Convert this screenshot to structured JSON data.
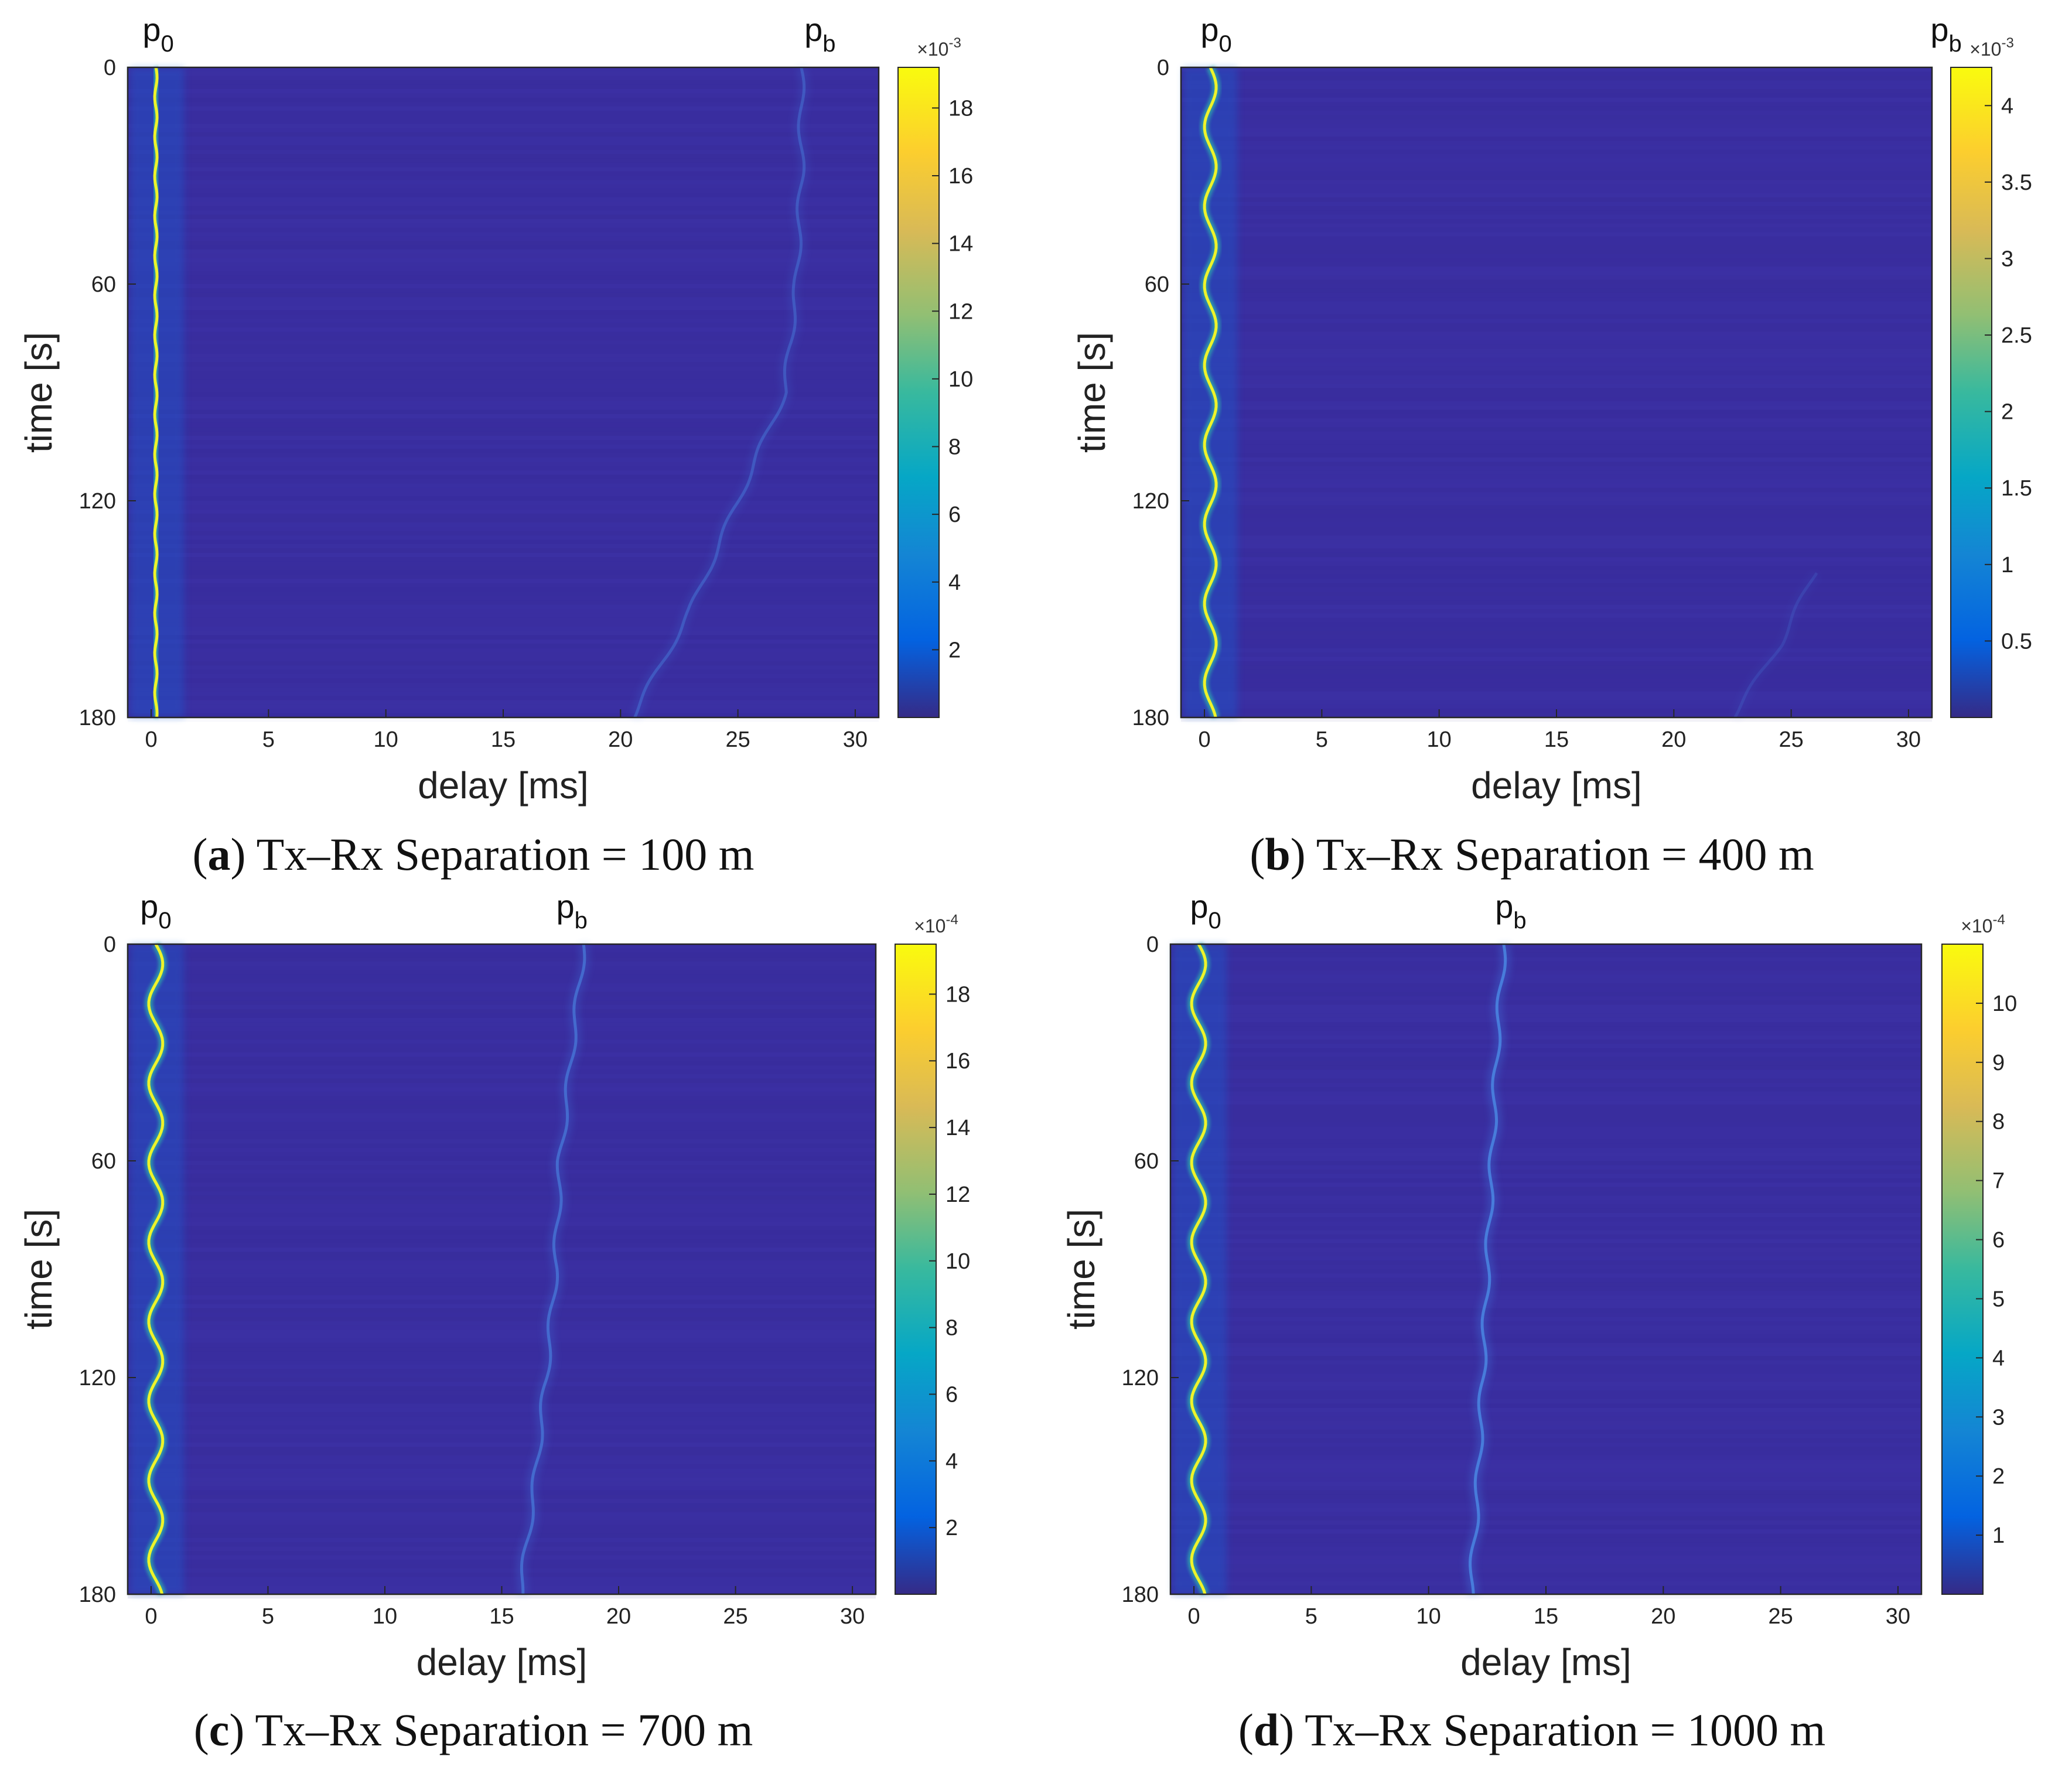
{
  "chart_data": [
    {
      "type": "heatmap",
      "panel": "a",
      "caption_letter": "a",
      "caption_text": "Tx–Rx Separation = 100 m",
      "xlabel": "delay [ms]",
      "ylabel": "time [s]",
      "xlim": [
        -1,
        31
      ],
      "ylim": [
        0,
        180
      ],
      "x_ticks": [
        0,
        5,
        10,
        15,
        20,
        25,
        30
      ],
      "y_ticks": [
        0,
        60,
        120,
        180
      ],
      "path_labels": [
        {
          "base": "p",
          "sub": "0",
          "delay_ms": 0.3
        },
        {
          "base": "p",
          "sub": "b",
          "delay_ms": 28.5
        }
      ],
      "colorbar": {
        "multiplier_text": "×10",
        "multiplier_exp": "-3",
        "ticks": [
          "2",
          "4",
          "6",
          "8",
          "10",
          "12",
          "14",
          "16",
          "18"
        ],
        "tick_values": [
          2,
          4,
          6,
          8,
          10,
          12,
          14,
          16,
          18
        ],
        "range": [
          0,
          19.2
        ]
      },
      "direct_path": {
        "delay_ms": 0.2,
        "wobble_ms": 0.05,
        "wobble_period_s": 11
      },
      "bottom_path": {
        "points": [
          [
            0,
            27.7
          ],
          [
            30,
            27.7
          ],
          [
            60,
            27.5
          ],
          [
            90,
            27.0
          ],
          [
            120,
            25.0
          ],
          [
            150,
            23.0
          ],
          [
            180,
            20.5
          ]
        ],
        "intensity": 0.15
      }
    },
    {
      "type": "heatmap",
      "panel": "b",
      "caption_letter": "b",
      "caption_text": "Tx–Rx Separation = 400 m",
      "xlabel": "delay [ms]",
      "ylabel": "time [s]",
      "xlim": [
        -1,
        31
      ],
      "ylim": [
        0,
        180
      ],
      "x_ticks": [
        0,
        5,
        10,
        15,
        20,
        25,
        30
      ],
      "y_ticks": [
        0,
        60,
        120,
        180
      ],
      "path_labels": [
        {
          "base": "p",
          "sub": "0",
          "delay_ms": 0.5
        },
        {
          "base": "p",
          "sub": "b",
          "delay_ms": 31.6
        }
      ],
      "colorbar": {
        "multiplier_text": "×10",
        "multiplier_exp": "-3",
        "ticks": [
          "0.5",
          "1",
          "1.5",
          "2",
          "2.5",
          "3",
          "3.5",
          "4"
        ],
        "tick_values": [
          0.5,
          1,
          1.5,
          2,
          2.5,
          3,
          3.5,
          4
        ],
        "range": [
          0,
          4.25
        ]
      },
      "direct_path": {
        "delay_ms": 0.25,
        "wobble_ms": 0.25,
        "wobble_period_s": 22
      },
      "bottom_path": {
        "points": [
          [
            140,
            26.0
          ],
          [
            160,
            24.5
          ],
          [
            180,
            22.5
          ]
        ],
        "intensity": 0.07
      }
    },
    {
      "type": "heatmap",
      "panel": "c",
      "caption_letter": "c",
      "caption_text": "Tx–Rx Separation = 700 m",
      "xlabel": "delay [ms]",
      "ylabel": "time [s]",
      "xlim": [
        -1,
        31
      ],
      "ylim": [
        0,
        180
      ],
      "x_ticks": [
        0,
        5,
        10,
        15,
        20,
        25,
        30
      ],
      "y_ticks": [
        0,
        60,
        120,
        180
      ],
      "path_labels": [
        {
          "base": "p",
          "sub": "0",
          "delay_ms": 0.2
        },
        {
          "base": "p",
          "sub": "b",
          "delay_ms": 18.0
        }
      ],
      "colorbar": {
        "multiplier_text": "×10",
        "multiplier_exp": "-4",
        "ticks": [
          "2",
          "4",
          "6",
          "8",
          "10",
          "12",
          "14",
          "16",
          "18"
        ],
        "tick_values": [
          2,
          4,
          6,
          8,
          10,
          12,
          14,
          16,
          18
        ],
        "range": [
          0,
          19.5
        ]
      },
      "direct_path": {
        "delay_ms": 0.2,
        "wobble_ms": 0.3,
        "wobble_period_s": 22
      },
      "bottom_path": {
        "points": [
          [
            0,
            18.5
          ],
          [
            30,
            18.0
          ],
          [
            60,
            17.5
          ],
          [
            90,
            17.3
          ],
          [
            120,
            16.9
          ],
          [
            150,
            16.4
          ],
          [
            180,
            15.8
          ]
        ],
        "intensity": 0.22
      }
    },
    {
      "type": "heatmap",
      "panel": "d",
      "caption_letter": "d",
      "caption_text": "Tx–Rx Separation = 1000 m",
      "xlabel": "delay [ms]",
      "ylabel": "time [s]",
      "xlim": [
        -1,
        31
      ],
      "ylim": [
        0,
        180
      ],
      "x_ticks": [
        0,
        5,
        10,
        15,
        20,
        25,
        30
      ],
      "y_ticks": [
        0,
        60,
        120,
        180
      ],
      "path_labels": [
        {
          "base": "p",
          "sub": "0",
          "delay_ms": 0.5
        },
        {
          "base": "p",
          "sub": "b",
          "delay_ms": 13.5
        }
      ],
      "colorbar": {
        "multiplier_text": "×10",
        "multiplier_exp": "-4",
        "ticks": [
          "1",
          "2",
          "3",
          "4",
          "5",
          "6",
          "7",
          "8",
          "9",
          "10"
        ],
        "tick_values": [
          1,
          2,
          3,
          4,
          5,
          6,
          7,
          8,
          9,
          10
        ],
        "range": [
          0,
          11
        ]
      },
      "direct_path": {
        "delay_ms": 0.2,
        "wobble_ms": 0.3,
        "wobble_period_s": 22
      },
      "bottom_path": {
        "points": [
          [
            0,
            13.2
          ],
          [
            30,
            12.9
          ],
          [
            60,
            12.7
          ],
          [
            90,
            12.5
          ],
          [
            120,
            12.3
          ],
          [
            150,
            12.1
          ],
          [
            180,
            11.8
          ]
        ],
        "intensity": 0.3
      }
    }
  ]
}
